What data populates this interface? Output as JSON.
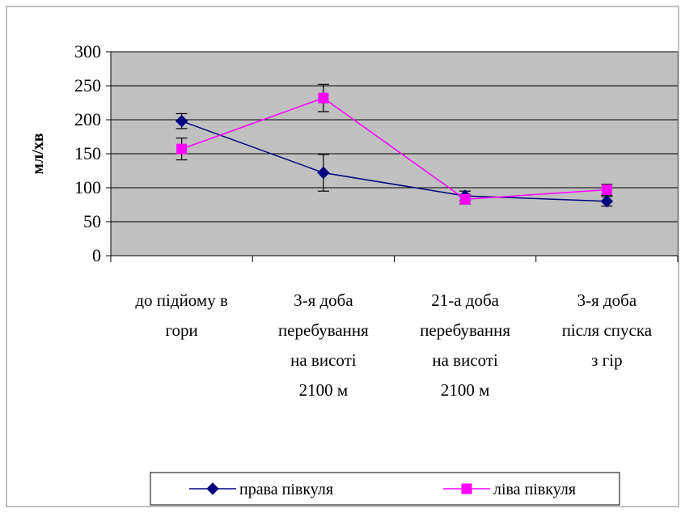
{
  "chart_data": {
    "type": "line",
    "title": "",
    "xlabel": "",
    "ylabel": "мл/хв",
    "ylim": [
      0,
      300
    ],
    "yticks": [
      0,
      50,
      100,
      150,
      200,
      250,
      300
    ],
    "grid": true,
    "legend_position": "bottom",
    "categories": [
      [
        "до підйому в",
        "гори"
      ],
      [
        "3-я доба",
        "перебування",
        "на висоті",
        "2100 м"
      ],
      [
        "21-а доба",
        "перебування",
        "на висоті",
        "2100 м"
      ],
      [
        "3-я доба",
        "після спуска",
        "з гір"
      ]
    ],
    "series": [
      {
        "name": "права півкуля",
        "color": "#000080",
        "marker": "diamond",
        "values": [
          198,
          122,
          88,
          80
        ],
        "error": [
          11,
          27,
          7,
          7
        ]
      },
      {
        "name": "ліва півкуля",
        "color": "#ff00ff",
        "marker": "square",
        "values": [
          157,
          232,
          83,
          97
        ],
        "error": [
          16,
          20,
          7,
          8
        ]
      }
    ],
    "plot_background": "#c0c0c0"
  }
}
